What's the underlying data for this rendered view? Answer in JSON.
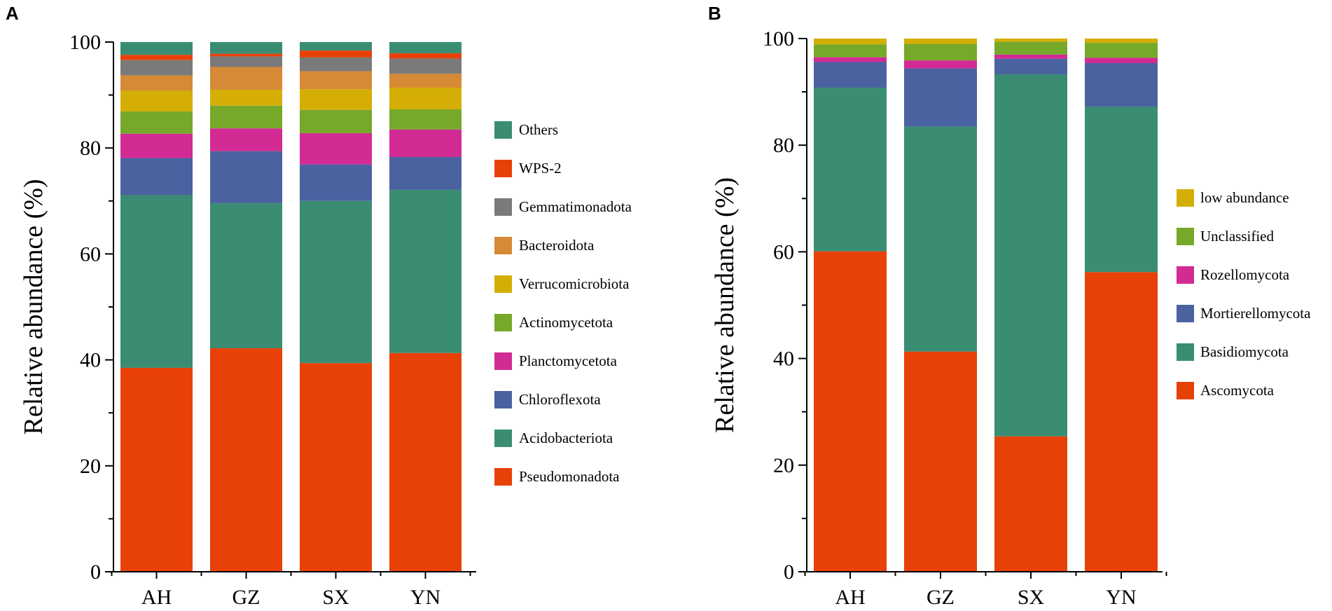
{
  "chart_data": [
    {
      "panel_label": "A",
      "type": "bar",
      "stacked": true,
      "title": "",
      "xlabel": "",
      "ylabel": "Relative abundance (%)",
      "ylim": [
        0,
        100
      ],
      "yticks": [
        "0",
        "20",
        "40",
        "60",
        "80",
        "100"
      ],
      "categories": [
        "AH",
        "GZ",
        "SX",
        "YN"
      ],
      "series": [
        {
          "name": "Pseudomonadota",
          "color": "#E84107",
          "values": [
            38.5,
            42.2,
            39.4,
            41.3
          ]
        },
        {
          "name": "Acidobacteriota",
          "color": "#3A8D73",
          "values": [
            32.6,
            27.4,
            30.6,
            30.8
          ]
        },
        {
          "name": "Chloroflexota",
          "color": "#4A62A0",
          "values": [
            7.0,
            9.8,
            6.9,
            6.2
          ]
        },
        {
          "name": "Planctomycetota",
          "color": "#D22B94",
          "values": [
            4.6,
            4.3,
            5.9,
            5.2
          ]
        },
        {
          "name": "Actinomycetota",
          "color": "#76A82A",
          "values": [
            4.2,
            4.3,
            4.4,
            3.8
          ]
        },
        {
          "name": "Verrucomicrobiota",
          "color": "#D4AE05",
          "values": [
            3.9,
            3.0,
            3.9,
            4.1
          ]
        },
        {
          "name": "Bacteroidota",
          "color": "#D68A35",
          "values": [
            2.9,
            4.3,
            3.4,
            2.6
          ]
        },
        {
          "name": "Gemmatimonadota",
          "color": "#7A7A7A",
          "values": [
            2.9,
            2.0,
            2.6,
            2.9
          ]
        },
        {
          "name": "WPS-2",
          "color": "#E84107",
          "values": [
            1.0,
            0.5,
            1.3,
            1.0
          ]
        },
        {
          "name": "Others",
          "color": "#3A8D73",
          "values": [
            2.4,
            2.2,
            1.6,
            2.1
          ]
        }
      ]
    },
    {
      "panel_label": "B",
      "type": "bar",
      "stacked": true,
      "title": "",
      "xlabel": "",
      "ylabel": "Relative abundance (%)",
      "ylim": [
        0,
        100
      ],
      "yticks": [
        "0",
        "20",
        "40",
        "60",
        "80",
        "100"
      ],
      "categories": [
        "AH",
        "GZ",
        "SX",
        "YN"
      ],
      "series": [
        {
          "name": "Ascomycota",
          "color": "#E84107",
          "values": [
            60.1,
            41.3,
            25.4,
            56.2
          ]
        },
        {
          "name": "Basidiomycota",
          "color": "#3A8D73",
          "values": [
            30.7,
            42.2,
            67.9,
            31.0
          ]
        },
        {
          "name": "Mortierellomycota",
          "color": "#4A62A0",
          "values": [
            4.8,
            10.9,
            2.9,
            8.2
          ]
        },
        {
          "name": "Rozellomycota",
          "color": "#D22B94",
          "values": [
            0.9,
            1.5,
            0.8,
            1.0
          ]
        },
        {
          "name": "Unclassified",
          "color": "#76A82A",
          "values": [
            2.4,
            3.1,
            2.4,
            2.8
          ]
        },
        {
          "name": "low abundance",
          "color": "#D4AE05",
          "values": [
            1.1,
            1.0,
            0.6,
            0.8
          ]
        }
      ]
    }
  ]
}
